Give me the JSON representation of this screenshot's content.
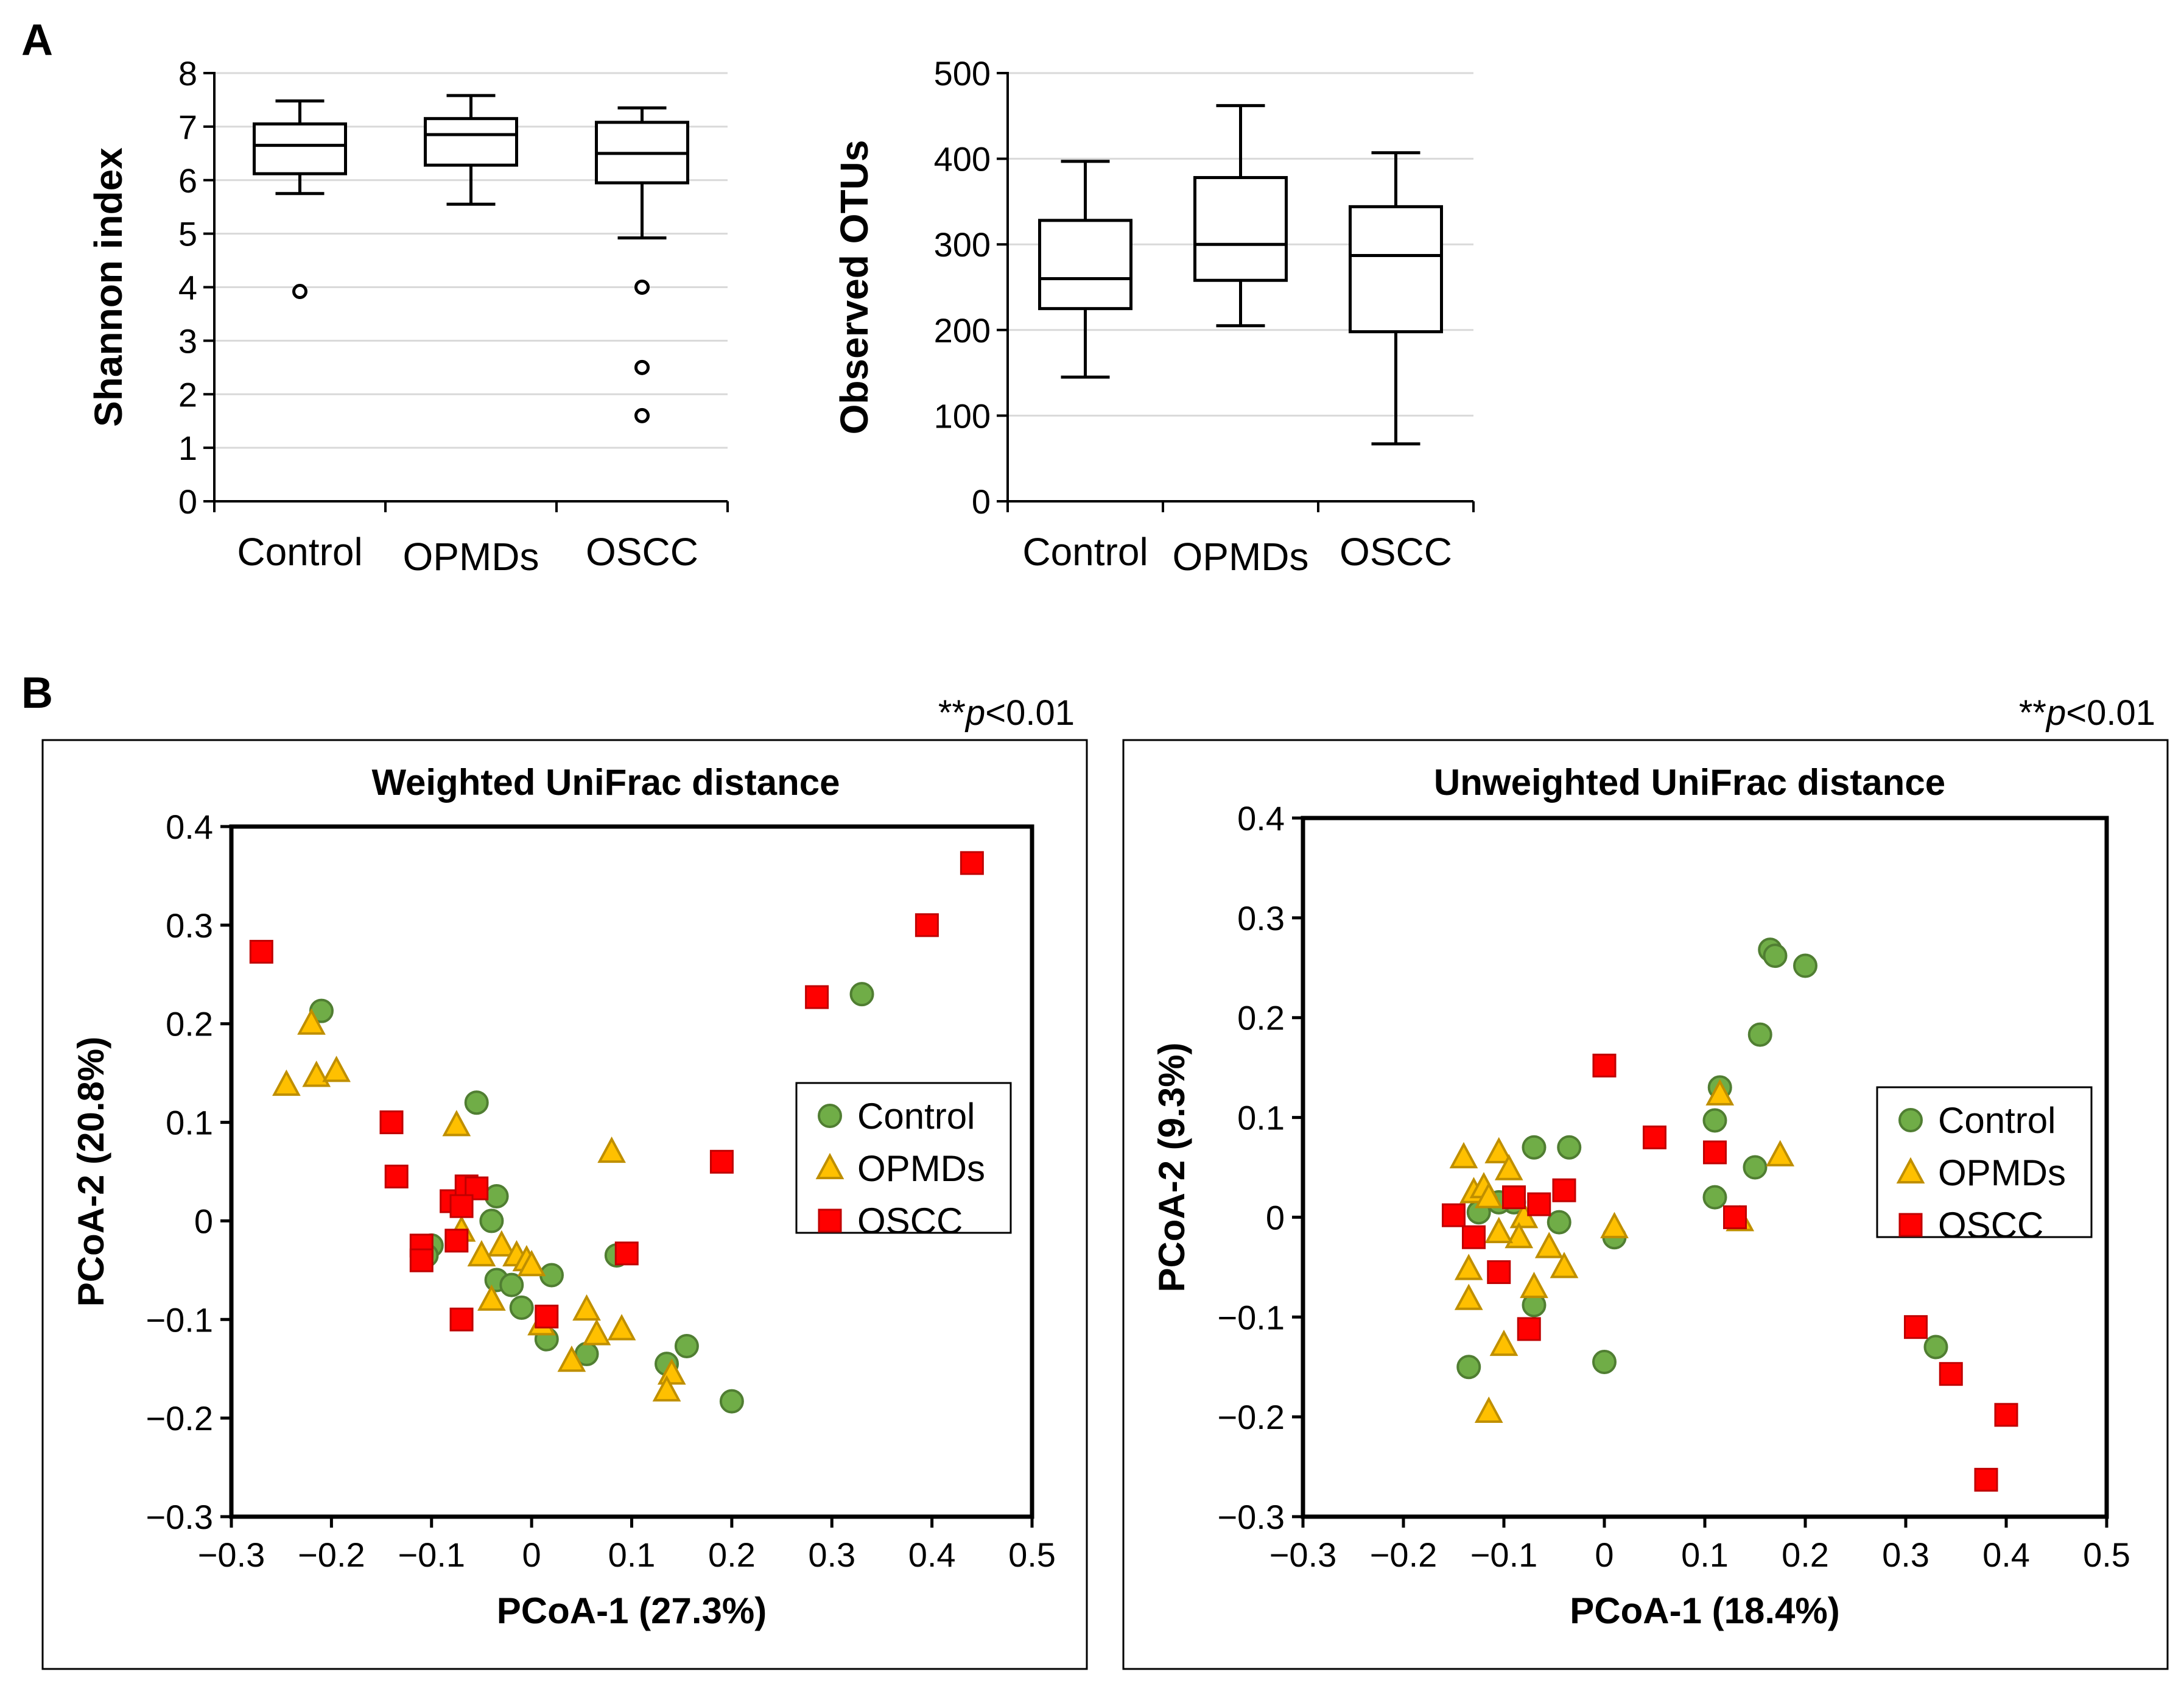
{
  "figure": {
    "panel_a_letter": "A",
    "panel_b_letter": "B"
  },
  "colors": {
    "control_fill": "#70AD47",
    "control_stroke": "#507E32",
    "opmd_fill": "#FFC000",
    "opmd_stroke": "#BF8F00",
    "oscc_fill": "#FF0000",
    "oscc_stroke": "#C00000",
    "grid": "#D9D9D9",
    "axis": "#000000"
  },
  "chart_data": [
    {
      "type": "boxplot",
      "ylabel": "Shannon index",
      "ylim": [
        0,
        8
      ],
      "yticks": [
        "0",
        "1",
        "2",
        "3",
        "4",
        "5",
        "6",
        "7",
        "8"
      ],
      "categories": [
        "Control",
        "OPMDs",
        "OSCC"
      ],
      "boxes": [
        {
          "name": "Control",
          "whisker_low": 5.75,
          "q1": 6.12,
          "median": 6.65,
          "q3": 7.05,
          "whisker_high": 7.48,
          "outliers": [
            3.92
          ]
        },
        {
          "name": "OPMDs",
          "whisker_low": 5.55,
          "q1": 6.28,
          "median": 6.85,
          "q3": 7.15,
          "whisker_high": 7.58,
          "outliers": []
        },
        {
          "name": "OSCC",
          "whisker_low": 4.92,
          "q1": 5.95,
          "median": 6.5,
          "q3": 7.08,
          "whisker_high": 7.35,
          "outliers": [
            4.0,
            2.5,
            1.6
          ]
        }
      ]
    },
    {
      "type": "boxplot",
      "ylabel": "Observed OTUs",
      "ylim": [
        0,
        500
      ],
      "yticks": [
        "0",
        "100",
        "200",
        "300",
        "400",
        "500"
      ],
      "categories": [
        "Control",
        "OPMDs",
        "OSCC"
      ],
      "boxes": [
        {
          "name": "Control",
          "whisker_low": 145,
          "q1": 225,
          "median": 260,
          "q3": 328,
          "whisker_high": 397,
          "outliers": []
        },
        {
          "name": "OPMDs",
          "whisker_low": 205,
          "q1": 258,
          "median": 300,
          "q3": 378,
          "whisker_high": 462,
          "outliers": []
        },
        {
          "name": "OSCC",
          "whisker_low": 67,
          "q1": 198,
          "median": 287,
          "q3": 344,
          "whisker_high": 407,
          "outliers": []
        }
      ]
    },
    {
      "type": "scatter",
      "title": "Weighted UniFrac distance",
      "significance": "**p<0.01",
      "sig_prefix": "**",
      "sig_p": "p",
      "sig_suffix": "<0.01",
      "xlabel": "PCoA-1 (27.3%)",
      "ylabel": "PCoA-2 (20.8%)",
      "xlim": [
        -0.3,
        0.5
      ],
      "ylim": [
        -0.3,
        0.4
      ],
      "xticks": [
        "−0.3",
        "−0.2",
        "−0.1",
        "0",
        "0.1",
        "0.2",
        "0.3",
        "0.4",
        "0.5"
      ],
      "yticks": [
        "−0.3",
        "−0.2",
        "−0.1",
        "0",
        "0.1",
        "0.2",
        "0.3",
        "0.4"
      ],
      "legend": [
        "Control",
        "OPMDs",
        "OSCC"
      ],
      "series": [
        {
          "name": "Control",
          "marker": "circle",
          "points": [
            [
              -0.21,
              0.213
            ],
            [
              -0.055,
              0.12
            ],
            [
              -0.035,
              0.025
            ],
            [
              -0.04,
              0.0
            ],
            [
              0.085,
              -0.035
            ],
            [
              -0.1,
              -0.025
            ],
            [
              -0.105,
              -0.035
            ],
            [
              -0.035,
              -0.06
            ],
            [
              -0.02,
              -0.065
            ],
            [
              0.02,
              -0.055
            ],
            [
              -0.01,
              -0.088
            ],
            [
              0.015,
              -0.12
            ],
            [
              0.055,
              -0.135
            ],
            [
              0.135,
              -0.145
            ],
            [
              0.155,
              -0.127
            ],
            [
              0.2,
              -0.183
            ],
            [
              0.33,
              0.23
            ]
          ]
        },
        {
          "name": "OPMDs",
          "marker": "triangle",
          "points": [
            [
              -0.22,
              0.2
            ],
            [
              -0.245,
              0.138
            ],
            [
              -0.215,
              0.147
            ],
            [
              -0.195,
              0.152
            ],
            [
              -0.075,
              0.097
            ],
            [
              0.08,
              0.07
            ],
            [
              -0.07,
              -0.01
            ],
            [
              -0.05,
              -0.035
            ],
            [
              -0.03,
              -0.025
            ],
            [
              -0.015,
              -0.035
            ],
            [
              -0.005,
              -0.04
            ],
            [
              0.0,
              -0.045
            ],
            [
              -0.04,
              -0.08
            ],
            [
              0.01,
              -0.105
            ],
            [
              0.055,
              -0.09
            ],
            [
              0.065,
              -0.115
            ],
            [
              0.09,
              -0.11
            ],
            [
              0.04,
              -0.142
            ],
            [
              0.14,
              -0.155
            ],
            [
              0.135,
              -0.172
            ]
          ]
        },
        {
          "name": "OSCC",
          "marker": "square",
          "points": [
            [
              -0.27,
              0.273
            ],
            [
              -0.14,
              0.1
            ],
            [
              -0.135,
              0.045
            ],
            [
              -0.08,
              0.02
            ],
            [
              -0.065,
              0.035
            ],
            [
              -0.055,
              0.033
            ],
            [
              -0.07,
              0.015
            ],
            [
              -0.075,
              -0.02
            ],
            [
              -0.11,
              -0.025
            ],
            [
              -0.11,
              -0.04
            ],
            [
              -0.07,
              -0.1
            ],
            [
              0.015,
              -0.097
            ],
            [
              0.095,
              -0.033
            ],
            [
              0.19,
              0.06
            ],
            [
              0.285,
              0.227
            ],
            [
              0.395,
              0.3
            ],
            [
              0.44,
              0.363
            ]
          ]
        }
      ]
    },
    {
      "type": "scatter",
      "title": "Unweighted UniFrac distance",
      "significance": "**p<0.01",
      "sig_prefix": "**",
      "sig_p": "p",
      "sig_suffix": "<0.01",
      "xlabel": "PCoA-1 (18.4%)",
      "ylabel": "PCoA-2 (9.3%)",
      "xlim": [
        -0.3,
        0.5
      ],
      "ylim": [
        -0.3,
        0.4
      ],
      "xticks": [
        "−0.3",
        "−0.2",
        "−0.1",
        "0",
        "0.1",
        "0.2",
        "0.3",
        "0.4",
        "0.5"
      ],
      "yticks": [
        "−0.3",
        "−0.2",
        "−0.1",
        "0",
        "0.1",
        "0.2",
        "0.3",
        "0.4"
      ],
      "legend": [
        "Control",
        "OPMDs",
        "OSCC"
      ],
      "series": [
        {
          "name": "Control",
          "marker": "circle",
          "points": [
            [
              0.165,
              0.268
            ],
            [
              0.17,
              0.262
            ],
            [
              0.2,
              0.252
            ],
            [
              0.155,
              0.183
            ],
            [
              0.115,
              0.13
            ],
            [
              0.11,
              0.097
            ],
            [
              0.15,
              0.05
            ],
            [
              0.11,
              0.02
            ],
            [
              -0.07,
              0.07
            ],
            [
              -0.035,
              0.07
            ],
            [
              -0.09,
              0.015
            ],
            [
              -0.105,
              0.015
            ],
            [
              -0.125,
              0.005
            ],
            [
              -0.045,
              -0.005
            ],
            [
              0.01,
              -0.02
            ],
            [
              -0.07,
              -0.088
            ],
            [
              -0.135,
              -0.15
            ],
            [
              0.0,
              -0.145
            ],
            [
              0.33,
              -0.13
            ]
          ]
        },
        {
          "name": "OPMDs",
          "marker": "triangle",
          "points": [
            [
              0.115,
              0.123
            ],
            [
              0.175,
              0.062
            ],
            [
              -0.14,
              0.06
            ],
            [
              -0.105,
              0.065
            ],
            [
              -0.095,
              0.048
            ],
            [
              -0.13,
              0.025
            ],
            [
              -0.12,
              0.03
            ],
            [
              -0.115,
              0.02
            ],
            [
              -0.08,
              0.0
            ],
            [
              -0.085,
              -0.02
            ],
            [
              -0.105,
              -0.015
            ],
            [
              -0.055,
              -0.03
            ],
            [
              -0.04,
              -0.05
            ],
            [
              -0.135,
              -0.052
            ],
            [
              -0.135,
              -0.082
            ],
            [
              -0.07,
              -0.07
            ],
            [
              -0.1,
              -0.128
            ],
            [
              -0.115,
              -0.195
            ],
            [
              0.01,
              -0.01
            ],
            [
              0.135,
              -0.003
            ]
          ]
        },
        {
          "name": "OSCC",
          "marker": "square",
          "points": [
            [
              0.0,
              0.152
            ],
            [
              0.05,
              0.08
            ],
            [
              0.11,
              0.065
            ],
            [
              0.13,
              0.0
            ],
            [
              -0.04,
              0.027
            ],
            [
              -0.065,
              0.013
            ],
            [
              -0.09,
              0.02
            ],
            [
              -0.15,
              0.002
            ],
            [
              -0.13,
              -0.02
            ],
            [
              -0.105,
              -0.055
            ],
            [
              -0.075,
              -0.112
            ],
            [
              0.31,
              -0.11
            ],
            [
              0.345,
              -0.157
            ],
            [
              0.4,
              -0.198
            ],
            [
              0.38,
              -0.263
            ]
          ]
        }
      ]
    }
  ]
}
